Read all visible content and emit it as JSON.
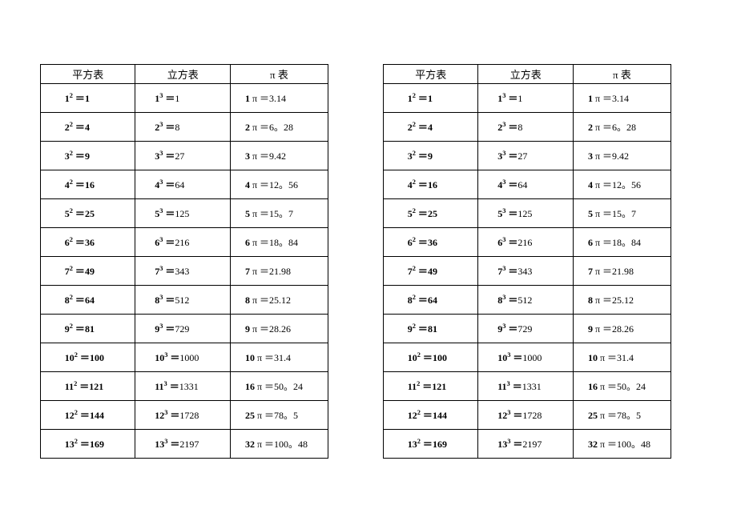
{
  "headers": {
    "square": "平方表",
    "cube": "立方表",
    "pi": "π 表"
  },
  "rows": [
    {
      "sq_base": "1",
      "sq_val": "1",
      "cu_base": "1",
      "cu_val": "1",
      "pi_n": "1",
      "pi_val": "3.14"
    },
    {
      "sq_base": "2",
      "sq_val": "4",
      "cu_base": "2",
      "cu_val": "8",
      "pi_n": "2",
      "pi_val": "6。28"
    },
    {
      "sq_base": "3",
      "sq_val": "9",
      "cu_base": "3",
      "cu_val": "27",
      "pi_n": "3",
      "pi_val": "9.42"
    },
    {
      "sq_base": "4",
      "sq_val": "16",
      "cu_base": "4",
      "cu_val": "64",
      "pi_n": "4",
      "pi_val": "12。56"
    },
    {
      "sq_base": "5",
      "sq_val": "25",
      "cu_base": "5",
      "cu_val": "125",
      "pi_n": "5",
      "pi_val": "15。7"
    },
    {
      "sq_base": "6",
      "sq_val": "36",
      "cu_base": "6",
      "cu_val": "216",
      "pi_n": "6",
      "pi_val": "18。84"
    },
    {
      "sq_base": "7",
      "sq_val": "49",
      "cu_base": "7",
      "cu_val": "343",
      "pi_n": "7",
      "pi_val": "21.98"
    },
    {
      "sq_base": "8",
      "sq_val": "64",
      "cu_base": "8",
      "cu_val": "512",
      "pi_n": "8",
      "pi_val": "25.12"
    },
    {
      "sq_base": "9",
      "sq_val": "81",
      "cu_base": "9",
      "cu_val": "729",
      "pi_n": "9",
      "pi_val": "28.26"
    },
    {
      "sq_base": "10",
      "sq_val": "100",
      "cu_base": "10",
      "cu_val": "1000",
      "pi_n": "10",
      "pi_val": "31.4"
    },
    {
      "sq_base": "11",
      "sq_val": "121",
      "cu_base": "11",
      "cu_val": "1331",
      "pi_n": "16",
      "pi_val": "50。24"
    },
    {
      "sq_base": "12",
      "sq_val": "144",
      "cu_base": "12",
      "cu_val": "1728",
      "pi_n": "25",
      "pi_val": "78。5"
    },
    {
      "sq_base": "13",
      "sq_val": "169",
      "cu_base": "13",
      "cu_val": "2197",
      "pi_n": "32",
      "pi_val": "100。48"
    }
  ],
  "colors": {
    "border": "#000000",
    "text": "#000000",
    "background": "#ffffff"
  },
  "font_sizes": {
    "header": 13,
    "cell": 12
  }
}
